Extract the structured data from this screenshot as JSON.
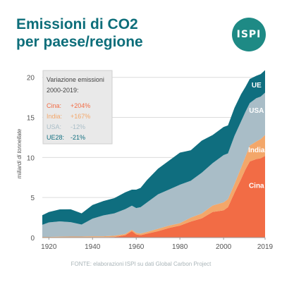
{
  "title_line1": "Emissioni di CO2",
  "title_line2": "per paese/regione",
  "logo_text": "ISPI",
  "source": "FONTE: elaborazioni ISPI su dati Global Carbon Project",
  "colors": {
    "Cina": "#f26c45",
    "India": "#f3a76a",
    "USA": "#a9bdc7",
    "UE": "#0f6e7f",
    "text_teal": "#0d6e7a"
  },
  "chart_data": {
    "type": "area",
    "stacked": true,
    "ylabel": "miliardi di tonnellate",
    "ylim": [
      0,
      22
    ],
    "yticks": [
      0,
      5,
      10,
      15,
      20
    ],
    "xlim": [
      1917,
      2019
    ],
    "xticks": [
      1920,
      1940,
      1960,
      1980,
      2000,
      2019
    ],
    "x": [
      1917,
      1920,
      1925,
      1930,
      1935,
      1940,
      1945,
      1950,
      1955,
      1958,
      1960,
      1962,
      1965,
      1970,
      1975,
      1980,
      1985,
      1990,
      1995,
      2000,
      2002,
      2005,
      2008,
      2010,
      2012,
      2015,
      2017,
      2019
    ],
    "series": [
      {
        "name": "Cina",
        "values": [
          0.01,
          0.01,
          0.02,
          0.03,
          0.03,
          0.05,
          0.05,
          0.08,
          0.3,
          0.8,
          0.4,
          0.3,
          0.5,
          0.8,
          1.2,
          1.5,
          2.0,
          2.4,
          3.2,
          3.4,
          3.8,
          5.6,
          7.3,
          8.5,
          9.5,
          9.8,
          9.9,
          10.2
        ]
      },
      {
        "name": "India",
        "values": [
          0.08,
          0.08,
          0.1,
          0.1,
          0.1,
          0.12,
          0.12,
          0.15,
          0.15,
          0.18,
          0.18,
          0.2,
          0.2,
          0.3,
          0.3,
          0.3,
          0.5,
          0.6,
          0.8,
          1.0,
          1.0,
          1.1,
          1.4,
          1.6,
          2.0,
          2.2,
          2.4,
          2.6
        ]
      },
      {
        "name": "USA",
        "values": [
          1.5,
          1.8,
          1.9,
          1.8,
          1.5,
          2.2,
          2.6,
          2.8,
          3.1,
          3.0,
          3.1,
          3.3,
          3.7,
          4.3,
          4.5,
          4.8,
          4.6,
          5.1,
          5.3,
          5.9,
          5.7,
          6.0,
          5.8,
          5.6,
          5.3,
          5.4,
          5.3,
          5.3
        ]
      },
      {
        "name": "UE",
        "values": [
          1.2,
          1.3,
          1.5,
          1.6,
          1.4,
          1.7,
          1.8,
          1.9,
          2.1,
          2.0,
          2.3,
          2.4,
          2.8,
          3.2,
          3.6,
          4.0,
          3.8,
          4.0,
          3.5,
          3.5,
          3.5,
          3.5,
          3.4,
          3.1,
          3.0,
          2.8,
          2.8,
          2.8
        ]
      }
    ],
    "series_labels": [
      "UE",
      "USA",
      "India",
      "Cina"
    ],
    "legend_title_line1": "Variazione emissioni",
    "legend_title_line2": "2000-2019:",
    "legend": [
      {
        "name": "Cina:",
        "value": "+204%",
        "color": "#f26c45"
      },
      {
        "name": "India:",
        "value": "+167%",
        "color": "#f3a76a"
      },
      {
        "name": "USA:",
        "value": "-12%",
        "color": "#a9bdc7"
      },
      {
        "name": "UE28:",
        "value": "-21%",
        "color": "#0f6e7f"
      }
    ],
    "legend_position": "top-left",
    "grid": "horizontal"
  }
}
